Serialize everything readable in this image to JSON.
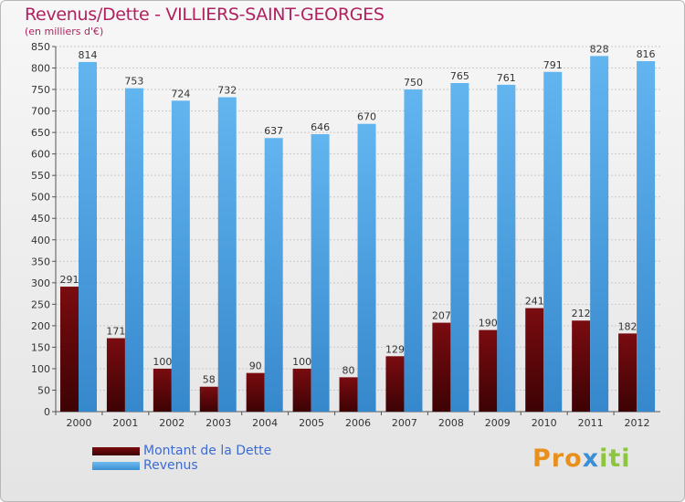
{
  "header": {
    "title": "Revenus/Dette - VILLIERS-SAINT-GEORGES",
    "subtitle": "(en milliers d'€)"
  },
  "legend": {
    "debt_label": "Montant de la Dette",
    "revenue_label": "Revenus"
  },
  "logo": {
    "p1": "Pro",
    "p2": "x",
    "p3": "iti"
  },
  "colors": {
    "title": "#b0215e",
    "debt_top": "#7a0c10",
    "debt_bottom": "#3d0204",
    "revenue_top": "#62b5ef",
    "revenue_bottom": "#3688cc",
    "legend_text": "#3b6bd6"
  },
  "chart_data": {
    "type": "bar",
    "title": "Revenus/Dette - VILLIERS-SAINT-GEORGES",
    "ylabel": "(en milliers d'€)",
    "xlabel": "",
    "ylim": [
      0,
      850
    ],
    "yticks": [
      0,
      50,
      100,
      150,
      200,
      250,
      300,
      350,
      400,
      450,
      500,
      550,
      600,
      650,
      700,
      750,
      800,
      850
    ],
    "grid": true,
    "legend_position": "bottom-left",
    "categories": [
      "2000",
      "2001",
      "2002",
      "2003",
      "2004",
      "2005",
      "2006",
      "2007",
      "2008",
      "2009",
      "2010",
      "2011",
      "2012"
    ],
    "series": [
      {
        "name": "Montant de la Dette",
        "values": [
          291,
          171,
          100,
          58,
          90,
          100,
          80,
          129,
          207,
          190,
          241,
          212,
          182
        ]
      },
      {
        "name": "Revenus",
        "values": [
          814,
          753,
          724,
          732,
          637,
          646,
          670,
          750,
          765,
          761,
          791,
          828,
          816
        ]
      }
    ]
  }
}
